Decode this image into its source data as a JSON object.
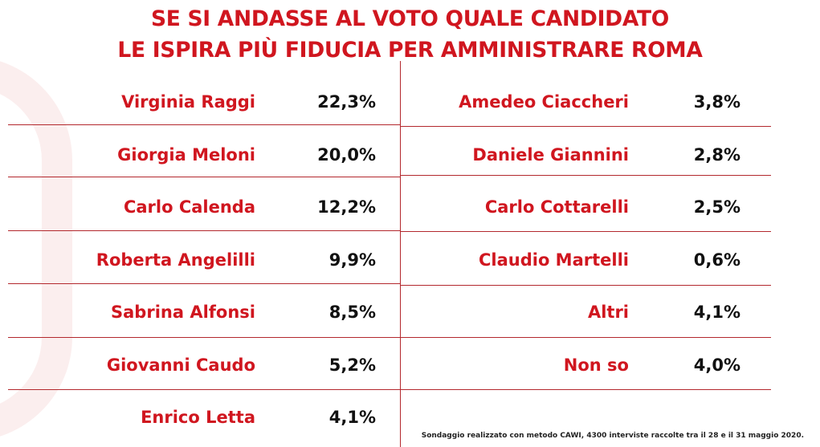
{
  "chart_data": {
    "type": "table",
    "title_lines": [
      "SE SI ANDASSE AL VOTO QUALE CANDIDATO",
      "LE ISPIRA PIÙ FIDUCIA PER AMMINISTRARE ROMA"
    ],
    "left": [
      {
        "name": "Virginia Raggi",
        "value": "22,3%"
      },
      {
        "name": "Giorgia Meloni",
        "value": "20,0%"
      },
      {
        "name": "Carlo Calenda",
        "value": "12,2%"
      },
      {
        "name": "Roberta Angelilli",
        "value": "9,9%"
      },
      {
        "name": "Sabrina Alfonsi",
        "value": "8,5%"
      },
      {
        "name": "Giovanni Caudo",
        "value": "5,2%"
      },
      {
        "name": "Enrico Letta",
        "value": "4,1%"
      }
    ],
    "right": [
      {
        "name": "Amedeo Ciaccheri",
        "value": "3,8%"
      },
      {
        "name": "Daniele Giannini",
        "value": "2,8%"
      },
      {
        "name": "Carlo Cottarelli",
        "value": "2,5%"
      },
      {
        "name": "Claudio Martelli",
        "value": "0,6%"
      },
      {
        "name": "Altri",
        "value": "4,1%"
      },
      {
        "name": "Non so",
        "value": "4,0%"
      }
    ],
    "footnote": "Sondaggio realizzato con metodo CAWI, 4300 interviste raccolte tra il 28 e il 31 maggio 2020.",
    "colors": {
      "accent": "#d0161f",
      "value_text": "#111111",
      "rule": "#b3282d"
    }
  }
}
